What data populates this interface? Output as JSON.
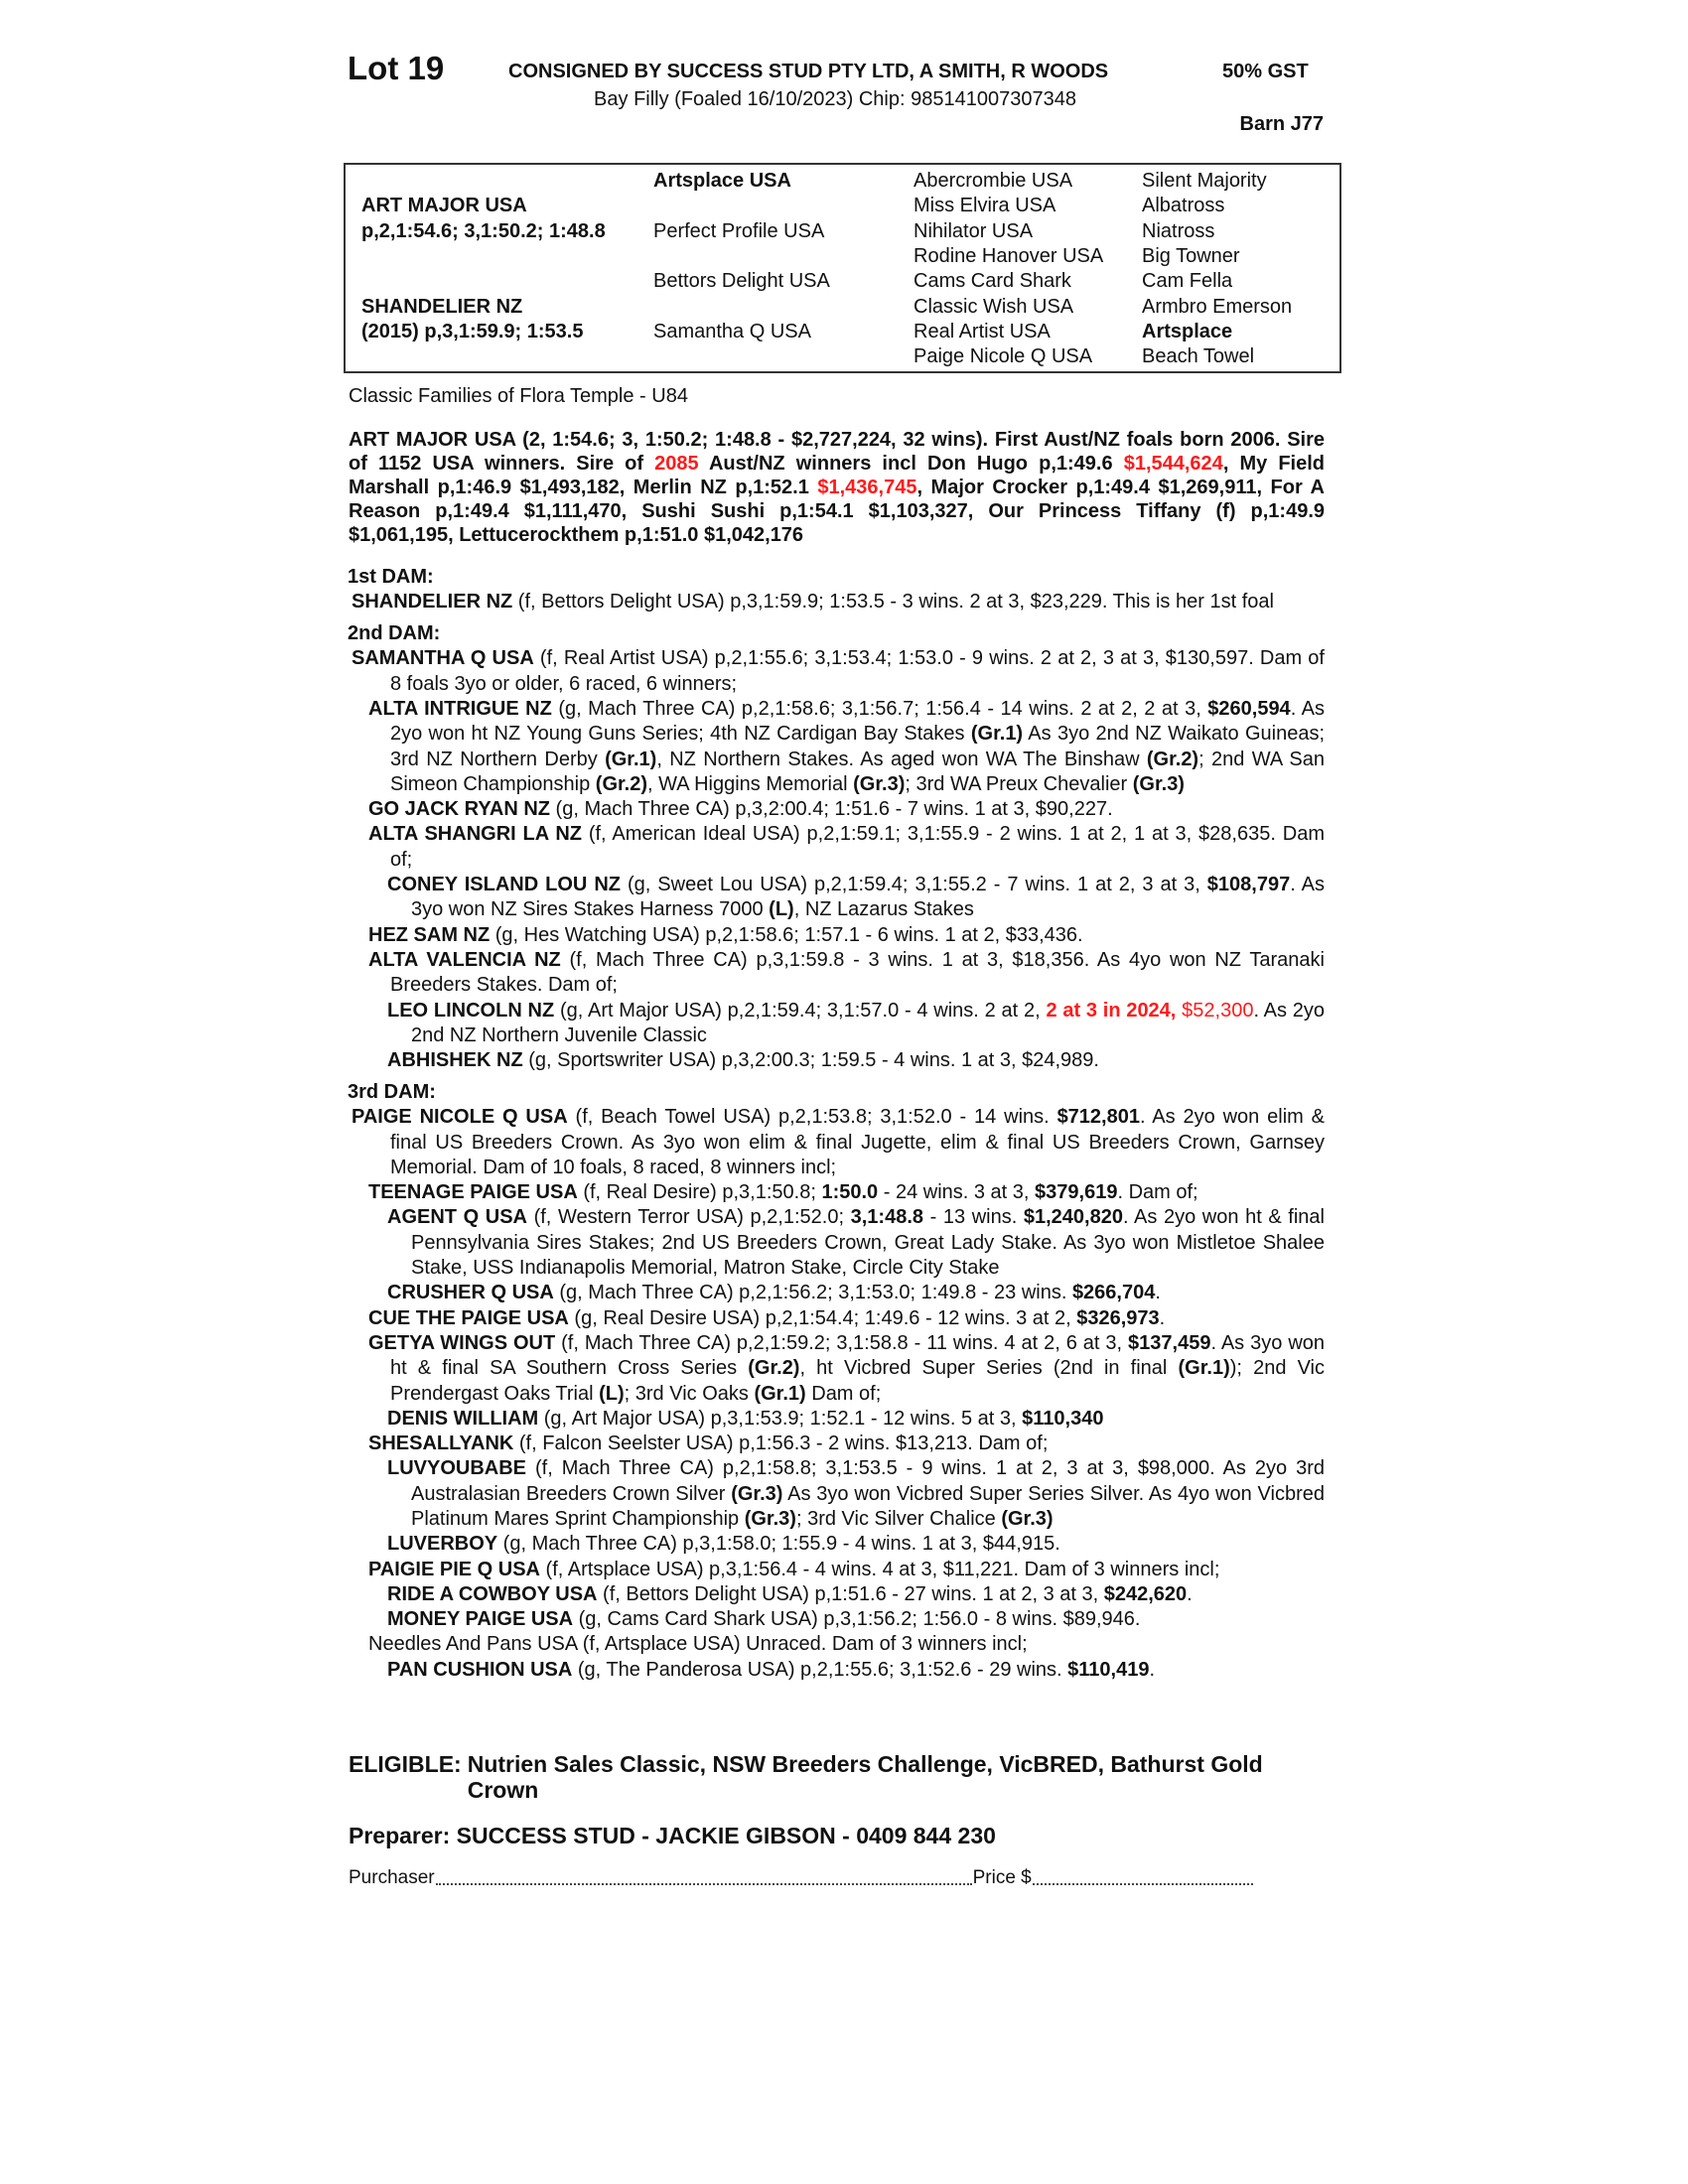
{
  "header": {
    "lot": "Lot 19",
    "consigned": "CONSIGNED BY SUCCESS STUD PTY LTD, A SMITH, R WOODS",
    "gst": "50% GST",
    "description": "Bay Filly (Foaled 16/10/2023) Chip: 985141007307348",
    "barn": "Barn J77"
  },
  "pedigree": {
    "col1": [
      {
        "row": 1,
        "t": "ART MAJOR USA",
        "b": true
      },
      {
        "row": 2,
        "t": "p,2,1:54.6; 3,1:50.2; 1:48.8",
        "b": true
      },
      {
        "row": 5,
        "t": "SHANDELIER NZ",
        "b": true
      },
      {
        "row": 6,
        "t": "(2015) p,3,1:59.9; 1:53.5",
        "b": true
      }
    ],
    "col2": [
      {
        "row": 0,
        "t": "Artsplace USA",
        "b": true
      },
      {
        "row": 2,
        "t": "Perfect Profile USA",
        "b": false
      },
      {
        "row": 4,
        "t": "Bettors Delight USA",
        "b": false
      },
      {
        "row": 6,
        "t": "Samantha Q USA",
        "b": false
      }
    ],
    "col3": [
      {
        "row": 0,
        "t": "Abercrombie USA",
        "b": false
      },
      {
        "row": 1,
        "t": "Miss Elvira USA",
        "b": false
      },
      {
        "row": 2,
        "t": "Nihilator USA",
        "b": false
      },
      {
        "row": 3,
        "t": "Rodine Hanover USA",
        "b": false
      },
      {
        "row": 4,
        "t": "Cams Card Shark",
        "b": false
      },
      {
        "row": 5,
        "t": "Classic Wish USA",
        "b": false
      },
      {
        "row": 6,
        "t": "Real Artist USA",
        "b": false
      },
      {
        "row": 7,
        "t": "Paige Nicole Q USA",
        "b": false
      }
    ],
    "col4": [
      {
        "row": 0,
        "t": "Silent Majority",
        "b": false
      },
      {
        "row": 1,
        "t": "Albatross",
        "b": false
      },
      {
        "row": 2,
        "t": "Niatross",
        "b": false
      },
      {
        "row": 3,
        "t": "Big Towner",
        "b": false
      },
      {
        "row": 4,
        "t": "Cam Fella",
        "b": false
      },
      {
        "row": 5,
        "t": "Armbro Emerson",
        "b": false
      },
      {
        "row": 6,
        "t": "Artsplace",
        "b": true
      },
      {
        "row": 7,
        "t": "Beach Towel",
        "b": false
      }
    ]
  },
  "family": "Classic Families of Flora Temple - U84",
  "colors": {
    "highlight": "#ff1a1a",
    "text": "#111111"
  },
  "sire": [
    {
      "t": "ART MAJOR USA (2, 1:54.6; 3, 1:50.2; 1:48.8 - $2,727,224, 32 wins). First Aust/NZ foals born 2006. Sire of 1152 USA winners. Sire of ",
      "s": "b"
    },
    {
      "t": "2085",
      "s": "rb"
    },
    {
      "t": " Aust/NZ winners incl Don Hugo p,1:49.6 ",
      "s": "b"
    },
    {
      "t": "$1,544,624",
      "s": "rb"
    },
    {
      "t": ", My Field Marshall p,1:46.9 $1,493,182, Merlin NZ p,1:52.1 ",
      "s": "b"
    },
    {
      "t": "$1,436,745",
      "s": "rb"
    },
    {
      "t": ", Major Crocker p,1:49.4 $1,269,911, For A Reason p,1:49.4 $1,111,470, Sushi Sushi p,1:54.1 $1,103,327, Our Princess Tiffany (f) p,1:49.9 $1,061,195, Lettucerockthem p,1:51.0 $1,042,176",
      "s": "b"
    }
  ],
  "dams": [
    {
      "heading": "1st DAM:",
      "entries": [
        {
          "level": 0,
          "runs": [
            {
              "t": "SHANDELIER NZ",
              "s": "b"
            },
            {
              "t": " (f, Bettors Delight USA) p,3,1:59.9; 1:53.5 - 3 wins. 2 at 3, $23,229. This is her 1st foal",
              "s": ""
            }
          ]
        }
      ]
    },
    {
      "heading": "2nd DAM:",
      "entries": [
        {
          "level": 0,
          "runs": [
            {
              "t": "SAMANTHA Q USA",
              "s": "b"
            },
            {
              "t": " (f, Real Artist USA) p,2,1:55.6; 3,1:53.4; 1:53.0 - 9 wins. 2 at 2, 3 at 3, $130,597. Dam of 8 foals 3yo or older, 6 raced, 6 winners;",
              "s": ""
            }
          ]
        },
        {
          "level": 1,
          "runs": [
            {
              "t": "ALTA INTRIGUE NZ",
              "s": "b"
            },
            {
              "t": " (g, Mach Three CA) p,2,1:58.6; 3,1:56.7; 1:56.4 - 14 wins. 2 at 2, 2 at 3, ",
              "s": ""
            },
            {
              "t": "$260,594",
              "s": "b"
            },
            {
              "t": ". As 2yo won ht NZ Young Guns Series; 4th NZ Cardigan Bay Stakes ",
              "s": ""
            },
            {
              "t": "(Gr.1)",
              "s": "b"
            },
            {
              "t": " As 3yo 2nd NZ Waikato Guineas; 3rd NZ Northern Derby ",
              "s": ""
            },
            {
              "t": "(Gr.1)",
              "s": "b"
            },
            {
              "t": ", NZ Northern Stakes. As aged won WA The Binshaw ",
              "s": ""
            },
            {
              "t": "(Gr.2)",
              "s": "b"
            },
            {
              "t": "; 2nd WA San Simeon Championship ",
              "s": ""
            },
            {
              "t": "(Gr.2)",
              "s": "b"
            },
            {
              "t": ", WA Higgins Memorial ",
              "s": ""
            },
            {
              "t": "(Gr.3)",
              "s": "b"
            },
            {
              "t": "; 3rd WA Preux Chevalier ",
              "s": ""
            },
            {
              "t": "(Gr.3)",
              "s": "b"
            }
          ]
        },
        {
          "level": 1,
          "runs": [
            {
              "t": "GO JACK RYAN NZ",
              "s": "b"
            },
            {
              "t": " (g, Mach Three CA) p,3,2:00.4; 1:51.6 - 7 wins. 1 at 3, $90,227.",
              "s": ""
            }
          ]
        },
        {
          "level": 1,
          "runs": [
            {
              "t": "ALTA SHANGRI LA NZ",
              "s": "b"
            },
            {
              "t": " (f, American Ideal USA) p,2,1:59.1; 3,1:55.9 - 2 wins. 1 at 2, 1 at 3, $28,635. Dam of;",
              "s": ""
            }
          ]
        },
        {
          "level": 2,
          "runs": [
            {
              "t": "CONEY ISLAND LOU NZ",
              "s": "b"
            },
            {
              "t": " (g, Sweet Lou USA) p,2,1:59.4; 3,1:55.2 - 7 wins. 1 at 2, 3 at 3, ",
              "s": ""
            },
            {
              "t": "$108,797",
              "s": "b"
            },
            {
              "t": ". As 3yo won NZ Sires Stakes Harness 7000 ",
              "s": ""
            },
            {
              "t": "(L)",
              "s": "b"
            },
            {
              "t": ", NZ Lazarus Stakes",
              "s": ""
            }
          ]
        },
        {
          "level": 1,
          "runs": [
            {
              "t": "HEZ SAM NZ",
              "s": "b"
            },
            {
              "t": " (g, Hes Watching USA) p,2,1:58.6; 1:57.1 - 6 wins. 1 at 2, $33,436.",
              "s": ""
            }
          ]
        },
        {
          "level": 1,
          "runs": [
            {
              "t": "ALTA VALENCIA NZ",
              "s": "b"
            },
            {
              "t": " (f, Mach Three CA) p,3,1:59.8 - 3 wins. 1 at 3, $18,356. As 4yo won NZ Taranaki Breeders Stakes. Dam of;",
              "s": ""
            }
          ]
        },
        {
          "level": 2,
          "runs": [
            {
              "t": "LEO LINCOLN NZ",
              "s": "b"
            },
            {
              "t": " (g, Art Major USA) p,2,1:59.4; 3,1:57.0 - 4 wins. 2 at 2, ",
              "s": ""
            },
            {
              "t": "2 at 3 in 2024,",
              "s": "rb"
            },
            {
              "t": " ",
              "s": ""
            },
            {
              "t": "$52,300",
              "s": "r"
            },
            {
              "t": ". As 2yo 2nd NZ Northern Juvenile Classic",
              "s": ""
            }
          ]
        },
        {
          "level": 2,
          "runs": [
            {
              "t": "ABHISHEK NZ",
              "s": "b"
            },
            {
              "t": " (g, Sportswriter USA) p,3,2:00.3; 1:59.5 - 4 wins. 1 at 3, $24,989.",
              "s": ""
            }
          ]
        }
      ]
    },
    {
      "heading": "3rd DAM:",
      "entries": [
        {
          "level": 0,
          "runs": [
            {
              "t": "PAIGE NICOLE Q USA",
              "s": "b"
            },
            {
              "t": " (f, Beach Towel USA) p,2,1:53.8; 3,1:52.0 - 14 wins. ",
              "s": ""
            },
            {
              "t": "$712,801",
              "s": "b"
            },
            {
              "t": ". As 2yo won elim & final US Breeders Crown. As 3yo won elim & final Jugette, elim & final US Breeders Crown, Garnsey Memorial. Dam of 10 foals, 8 raced, 8 winners incl;",
              "s": ""
            }
          ]
        },
        {
          "level": 1,
          "runs": [
            {
              "t": "TEENAGE PAIGE USA",
              "s": "b"
            },
            {
              "t": " (f, Real Desire) p,3,1:50.8; ",
              "s": ""
            },
            {
              "t": "1:50.0",
              "s": "b"
            },
            {
              "t": " - 24 wins. 3 at 3, ",
              "s": ""
            },
            {
              "t": "$379,619",
              "s": "b"
            },
            {
              "t": ". Dam of;",
              "s": ""
            }
          ]
        },
        {
          "level": 2,
          "runs": [
            {
              "t": "AGENT Q USA",
              "s": "b"
            },
            {
              "t": " (f, Western Terror USA) p,2,1:52.0; ",
              "s": ""
            },
            {
              "t": "3,1:48.8",
              "s": "b"
            },
            {
              "t": " - 13 wins. ",
              "s": ""
            },
            {
              "t": "$1,240,820",
              "s": "b"
            },
            {
              "t": ". As 2yo won ht & final Pennsylvania Sires Stakes; 2nd US Breeders Crown, Great Lady Stake. As 3yo won Mistletoe Shalee Stake, USS Indianapolis Memorial, Matron Stake, Circle City Stake",
              "s": ""
            }
          ]
        },
        {
          "level": 2,
          "runs": [
            {
              "t": "CRUSHER Q USA",
              "s": "b"
            },
            {
              "t": " (g, Mach Three CA) p,2,1:56.2; 3,1:53.0; 1:49.8 - 23 wins. ",
              "s": ""
            },
            {
              "t": "$266,704",
              "s": "b"
            },
            {
              "t": ".",
              "s": ""
            }
          ]
        },
        {
          "level": 1,
          "runs": [
            {
              "t": "CUE THE PAIGE USA",
              "s": "b"
            },
            {
              "t": " (g, Real Desire USA) p,2,1:54.4; 1:49.6 - 12 wins. 3 at 2, ",
              "s": ""
            },
            {
              "t": "$326,973",
              "s": "b"
            },
            {
              "t": ".",
              "s": ""
            }
          ]
        },
        {
          "level": 1,
          "runs": [
            {
              "t": "GETYA WINGS OUT",
              "s": "b"
            },
            {
              "t": " (f, Mach Three CA) p,2,1:59.2; 3,1:58.8 - 11 wins. 4 at 2, 6 at 3, ",
              "s": ""
            },
            {
              "t": "$137,459",
              "s": "b"
            },
            {
              "t": ". As 3yo won ht & final SA Southern Cross Series ",
              "s": ""
            },
            {
              "t": "(Gr.2)",
              "s": "b"
            },
            {
              "t": ", ht Vicbred Super Series (2nd in final ",
              "s": ""
            },
            {
              "t": "(Gr.1)",
              "s": "b"
            },
            {
              "t": "); 2nd Vic Prendergast Oaks Trial ",
              "s": ""
            },
            {
              "t": "(L)",
              "s": "b"
            },
            {
              "t": "; 3rd Vic Oaks ",
              "s": ""
            },
            {
              "t": "(Gr.1)",
              "s": "b"
            },
            {
              "t": " Dam of;",
              "s": ""
            }
          ]
        },
        {
          "level": 2,
          "runs": [
            {
              "t": "DENIS WILLIAM",
              "s": "b"
            },
            {
              "t": " (g, Art Major USA) p,3,1:53.9; 1:52.1 - 12 wins. 5 at 3, ",
              "s": ""
            },
            {
              "t": "$110,340",
              "s": "b"
            }
          ]
        },
        {
          "level": 1,
          "runs": [
            {
              "t": "SHESALLYANK",
              "s": "b"
            },
            {
              "t": " (f, Falcon Seelster USA) p,1:56.3 - 2 wins. $13,213. Dam of;",
              "s": ""
            }
          ]
        },
        {
          "level": 2,
          "runs": [
            {
              "t": "LUVYOUBABE",
              "s": "b"
            },
            {
              "t": " (f, Mach Three CA) p,2,1:58.8; 3,1:53.5 - 9 wins. 1 at 2, 3 at 3, $98,000. As 2yo 3rd Australasian Breeders Crown Silver ",
              "s": ""
            },
            {
              "t": "(Gr.3)",
              "s": "b"
            },
            {
              "t": " As 3yo won Vicbred Super Series Silver. As 4yo won Vicbred Platinum Mares Sprint Championship ",
              "s": ""
            },
            {
              "t": "(Gr.3)",
              "s": "b"
            },
            {
              "t": "; 3rd Vic Silver Chalice ",
              "s": ""
            },
            {
              "t": "(Gr.3)",
              "s": "b"
            }
          ]
        },
        {
          "level": 2,
          "runs": [
            {
              "t": "LUVERBOY",
              "s": "b"
            },
            {
              "t": " (g, Mach Three CA) p,3,1:58.0; 1:55.9 - 4 wins. 1 at 3, $44,915.",
              "s": ""
            }
          ]
        },
        {
          "level": 1,
          "runs": [
            {
              "t": "PAIGIE PIE Q USA",
              "s": "b"
            },
            {
              "t": " (f, Artsplace USA) p,3,1:56.4 - 4 wins. 4 at 3, $11,221. Dam of 3 winners incl;",
              "s": ""
            }
          ]
        },
        {
          "level": 2,
          "runs": [
            {
              "t": "RIDE A COWBOY USA",
              "s": "b"
            },
            {
              "t": " (f, Bettors Delight USA) p,1:51.6 - 27 wins. 1 at 2, 3 at 3, ",
              "s": ""
            },
            {
              "t": "$242,620",
              "s": "b"
            },
            {
              "t": ".",
              "s": ""
            }
          ]
        },
        {
          "level": 2,
          "runs": [
            {
              "t": "MONEY PAIGE USA",
              "s": "b"
            },
            {
              "t": " (g, Cams Card Shark USA) p,3,1:56.2; 1:56.0 - 8 wins. $89,946.",
              "s": ""
            }
          ]
        },
        {
          "level": 1,
          "runs": [
            {
              "t": "Needles And Pans USA (f, Artsplace USA) Unraced. Dam of 3 winners incl;",
              "s": ""
            }
          ]
        },
        {
          "level": 2,
          "runs": [
            {
              "t": "PAN CUSHION USA",
              "s": "b"
            },
            {
              "t": " (g, The Panderosa USA) p,2,1:55.6; 3,1:52.6 - 29 wins. ",
              "s": ""
            },
            {
              "t": "$110,419",
              "s": "b"
            },
            {
              "t": ".",
              "s": ""
            }
          ]
        }
      ]
    }
  ],
  "eligible": {
    "label": "ELIGIBLE:",
    "text": "Nutrien Sales Classic, NSW Breeders Challenge, VicBRED, Bathurst Gold Crown"
  },
  "preparer": "Preparer: SUCCESS STUD - JACKIE GIBSON - 0409 844 230",
  "purchase": {
    "purchaser_label": "Purchaser",
    "price_label": "Price $"
  }
}
